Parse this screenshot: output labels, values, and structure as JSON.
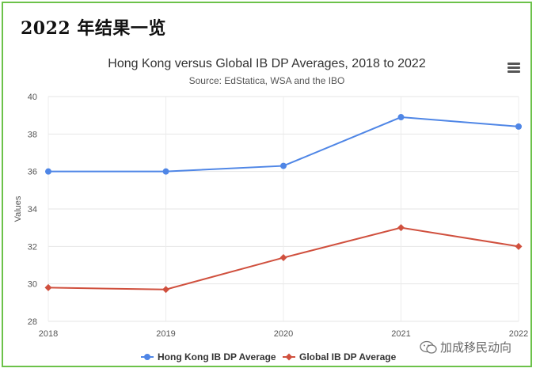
{
  "headline": "2022 年结果一览",
  "watermark": {
    "text": "加成移民动向",
    "icon": "wechat-icon"
  },
  "menu": {
    "icon": "hamburger-menu-icon"
  },
  "chart_data": {
    "type": "line",
    "title": "Hong Kong versus Global IB DP Averages, 2018 to 2022",
    "subtitle": "Source: EdStatica, WSA and the IBO",
    "ylabel": "Values",
    "xlabel": "",
    "x": [
      "2018",
      "2019",
      "2020",
      "2021",
      "2022"
    ],
    "ylim": [
      28,
      40
    ],
    "yticks": [
      "28",
      "30",
      "32",
      "34",
      "36",
      "38",
      "40"
    ],
    "grid": true,
    "legend_position": "bottom",
    "series": [
      {
        "name": "Hong Kong IB DP Average",
        "color": "#4f86e6",
        "marker": "circle",
        "values": [
          36.0,
          36.0,
          36.3,
          38.9,
          38.4
        ]
      },
      {
        "name": "Global IB DP Average",
        "color": "#d0503e",
        "marker": "diamond",
        "values": [
          29.8,
          29.7,
          31.4,
          33.0,
          32.0
        ]
      }
    ]
  }
}
